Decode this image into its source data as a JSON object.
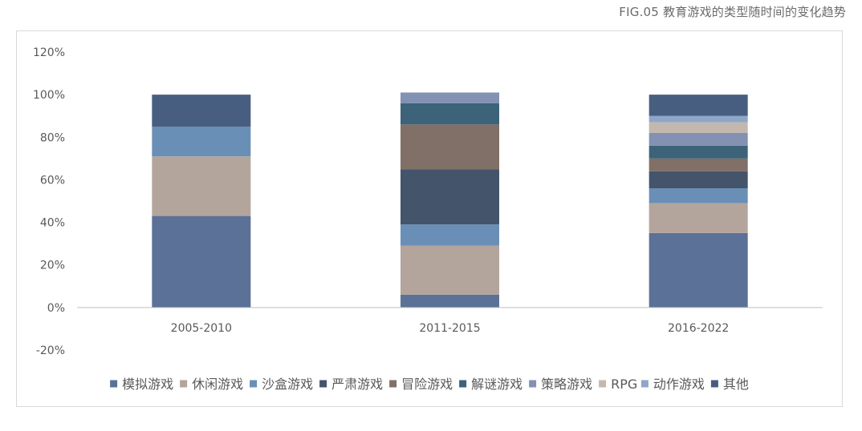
{
  "figure_title": "FIG.05 教育游戏的类型随时间的变化趋势",
  "colors": {
    "模拟游戏": "#5b7197",
    "休闲游戏": "#b3a59c",
    "沙盒游戏": "#6a8fb6",
    "严肃游戏": "#44546b",
    "冒险游戏": "#807067",
    "解谜游戏": "#3c6379",
    "策略游戏": "#8391b2",
    "RPG": "#c4b7ae",
    "动作游戏": "#8ea6c8",
    "其他": "#485e80"
  },
  "chart_data": {
    "type": "bar",
    "stacked": true,
    "categories": [
      "2005-2010",
      "2011-2015",
      "2016-2022"
    ],
    "series": [
      {
        "name": "模拟游戏",
        "values": [
          43,
          6,
          35
        ]
      },
      {
        "name": "休闲游戏",
        "values": [
          28,
          23,
          14
        ]
      },
      {
        "name": "沙盒游戏",
        "values": [
          14,
          10,
          7
        ]
      },
      {
        "name": "严肃游戏",
        "values": [
          0,
          26,
          8
        ]
      },
      {
        "name": "冒险游戏",
        "values": [
          0,
          21,
          6
        ]
      },
      {
        "name": "解谜游戏",
        "values": [
          0,
          10,
          6
        ]
      },
      {
        "name": "策略游戏",
        "values": [
          0,
          5,
          6
        ]
      },
      {
        "name": "RPG",
        "values": [
          0,
          0,
          5
        ]
      },
      {
        "name": "动作游戏",
        "values": [
          0,
          0,
          3
        ]
      },
      {
        "name": "其他",
        "values": [
          15,
          0,
          10
        ]
      }
    ],
    "ylim": [
      -20,
      120
    ],
    "yticks": [
      "120%",
      "100%",
      "80%",
      "60%",
      "40%",
      "20%",
      "0%",
      "-20%"
    ],
    "legend_position": "bottom",
    "grid": false
  }
}
